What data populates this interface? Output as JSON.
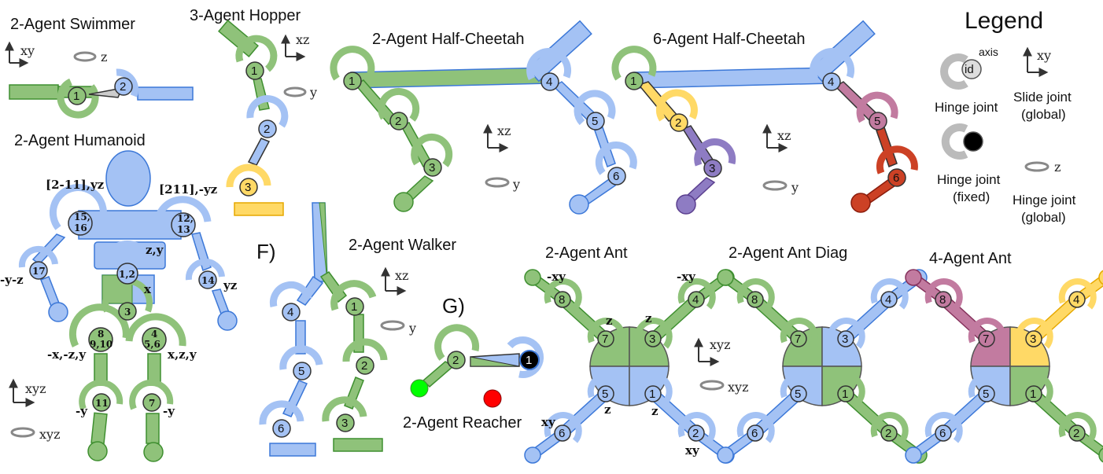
{
  "titles": {
    "swimmer": "2-Agent Swimmer",
    "hopper": "3-Agent Hopper",
    "half_cheetah_2": "2-Agent Half-Cheetah",
    "half_cheetah_6": "6-Agent Half-Cheetah",
    "humanoid": "2-Agent Humanoid",
    "walker": "2-Agent Walker",
    "reacher": "2-Agent Reacher",
    "ant_2": "2-Agent Ant",
    "ant_diag": "2-Agent Ant Diag",
    "ant_4": "4-Agent Ant"
  },
  "panel_letters": {
    "f": "F)",
    "g": "G)"
  },
  "legend": {
    "title": "Legend",
    "axis_label": "axis",
    "id_label": "id",
    "hinge_joint": "Hinge joint",
    "slide_joint_1": "Slide joint",
    "slide_joint_2": "(global)",
    "hinge_fixed_1": "Hinge joint",
    "hinge_fixed_2": "(fixed)",
    "hinge_global_1": "Hinge joint",
    "hinge_global_2": "(global)",
    "slide_axis": "xy",
    "hinge_axis": "z"
  },
  "axes": {
    "swimmer_slide": "xy",
    "swimmer_rot": "z",
    "hopper_slide": "xz",
    "hopper_rot": "y",
    "hc2_slide": "xz",
    "hc2_rot": "y",
    "hc6_slide": "xz",
    "hc6_rot": "y",
    "humanoid_slide": "xyz",
    "humanoid_rot": "xyz",
    "walker_slide": "xz",
    "walker_rot": "y",
    "ant_slide": "xyz",
    "ant_rot": "xyz"
  },
  "humanoid_labels": {
    "left_shoulder": "[2-11],yz",
    "right_shoulder": "[211],-yz",
    "left_elbow_axes": "-y-z",
    "right_elbow_axes": "yz",
    "abdomen_axes": "z,y",
    "pelvis_axes": "x",
    "left_hip_axes": "-x,-z,y",
    "right_hip_axes": "x,z,y",
    "left_knee_axes": "-y",
    "right_knee_axes": "-y",
    "j_shoulder_l": "15,",
    "j_shoulder_l2": "16",
    "j_shoulder_r": "12,",
    "j_shoulder_r2": "13",
    "j_elbow_l": "17",
    "j_elbow_r": "14",
    "j_abdomen": "1,2",
    "j_pelvis": "3",
    "j_hip_l": "8",
    "j_hip_l2": "9,10",
    "j_hip_r": "4",
    "j_hip_r2": "5,6",
    "j_knee_l": "11",
    "j_knee_r": "7"
  },
  "ant_labels": {
    "leg_tl": "-xy",
    "leg_tr": "-xy",
    "hip_l": "z",
    "hip_r": "z",
    "hip_bl": "z",
    "hip_br": "z",
    "leg_bl": "xy",
    "leg_br": "xy"
  },
  "joint_ids": {
    "swimmer": [
      "1",
      "2"
    ],
    "hopper": [
      "1",
      "2",
      "3"
    ],
    "hc2": [
      "1",
      "2",
      "3",
      "4",
      "5",
      "6"
    ],
    "hc6": [
      "1",
      "2",
      "3",
      "4",
      "5",
      "6"
    ],
    "walker": [
      "4",
      "5",
      "6",
      "1",
      "2",
      "3"
    ],
    "reacher": [
      "2",
      "1"
    ],
    "ant": [
      "8",
      "7",
      "3",
      "4",
      "5",
      "6",
      "1",
      "2"
    ]
  },
  "colors": {
    "green": "#8fc27a",
    "green_dark": "#3f8f30",
    "blue": "#a4c2f4",
    "blue_dark": "#3c78d8",
    "yellow": "#ffd966",
    "yellow_dark": "#e6a800",
    "purple": "#8e7cc3",
    "purple_dark": "#5b3f8f",
    "pink": "#c27ba0",
    "pink_dark": "#85325c",
    "red": "#cc4125",
    "red_dark": "#8a1c0c",
    "target_green": "#00ff00",
    "target_red": "#ff0000"
  }
}
